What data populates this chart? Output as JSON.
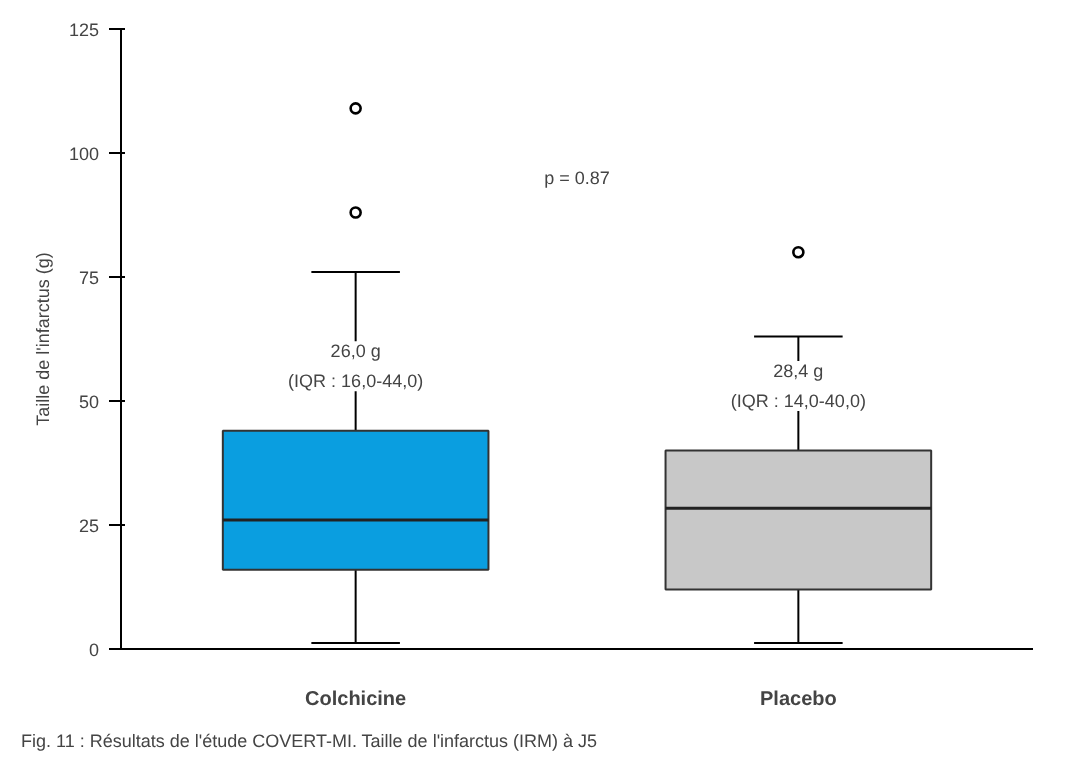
{
  "chart_data": {
    "type": "box",
    "ylabel": "Taille de l'infarctus (g)",
    "categories": [
      "Colchicine",
      "Placebo"
    ],
    "colors": [
      "#0a9ee0",
      "#c8c8c8"
    ],
    "boxes": [
      {
        "low": 1.2,
        "q1": 16.0,
        "median": 26.0,
        "q3": 44.0,
        "high": 76,
        "outliers": [
          88,
          109
        ]
      },
      {
        "low": 1.2,
        "q1": 12,
        "median": 28.4,
        "q3": 40.0,
        "high": 63,
        "outliers": [
          80
        ]
      }
    ],
    "ylim": [
      0,
      125
    ],
    "yticks": [
      0,
      25,
      50,
      75,
      100,
      125
    ],
    "grid": false,
    "annotations": [
      {
        "text": "26,0 g\n(IQR : 16,0-44,0)",
        "x": "Colchicine",
        "y": 57
      },
      {
        "text": "28,4 g\n(IQR : 14,0-40,0)",
        "x": "Placebo",
        "y": 53
      },
      "p = 0.87",
      "Fig. 11 : Résultats de l'étude COVERT-MI. Taille de l'infarctus (IRM) à J5"
    ]
  }
}
